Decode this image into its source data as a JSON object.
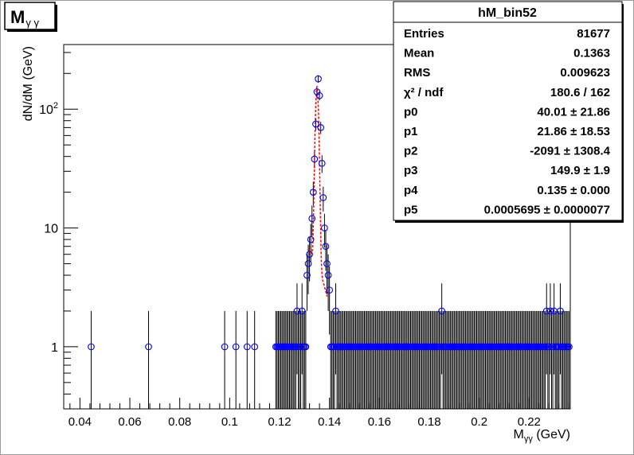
{
  "title_box": {
    "main": "M",
    "sub": "γ  γ"
  },
  "stats": {
    "title": "hM_bin52",
    "rows": [
      {
        "label": "Entries",
        "value": "81677"
      },
      {
        "label": "Mean",
        "value": "0.1363"
      },
      {
        "label": "RMS",
        "value": "0.009623"
      },
      {
        "label": "χ² / ndf",
        "value": "180.6 / 162"
      },
      {
        "label": "p0",
        "value": "40.01 ± 21.86"
      },
      {
        "label": "p1",
        "value": "21.86  ± 18.53"
      },
      {
        "label": "p2",
        "value": "-2091 ± 1308.4"
      },
      {
        "label": "p3",
        "value": "149.9  ± 1.9"
      },
      {
        "label": "p4",
        "value": "0.135 ± 0.000"
      },
      {
        "label": "p5",
        "value": "0.0005695 ± 0.0000077"
      }
    ]
  },
  "chart_data": {
    "type": "scatter",
    "subtype": "histogram-with-errors-and-fit",
    "title": "",
    "xlabel": {
      "main": "M",
      "sub": "γγ",
      "unit": " (GeV)"
    },
    "ylabel": "dN/dM (GeV)",
    "yscale": "log",
    "xlim": [
      0.0335,
      0.2365
    ],
    "ylim": [
      0.3,
      350
    ],
    "x_ticks": [
      {
        "value": 0.04,
        "label": "0.04"
      },
      {
        "value": 0.06,
        "label": "0.06"
      },
      {
        "value": 0.08,
        "label": "0.08"
      },
      {
        "value": 0.1,
        "label": "0.1"
      },
      {
        "value": 0.12,
        "label": "0.12"
      },
      {
        "value": 0.14,
        "label": "0.14"
      },
      {
        "value": 0.16,
        "label": "0.16"
      },
      {
        "value": 0.18,
        "label": "0.18"
      },
      {
        "value": 0.2,
        "label": "0.2"
      },
      {
        "value": 0.22,
        "label": "0.22"
      }
    ],
    "y_ticks": [
      {
        "value": 1,
        "label": "1"
      },
      {
        "value": 10,
        "label": "10"
      },
      {
        "value": 100,
        "label": "10²"
      }
    ],
    "bin_width": 0.0005,
    "sparse_points": [
      {
        "x": 0.0445,
        "y": 1
      },
      {
        "x": 0.0675,
        "y": 1
      },
      {
        "x": 0.098,
        "y": 1
      },
      {
        "x": 0.1025,
        "y": 1
      },
      {
        "x": 0.107,
        "y": 1
      },
      {
        "x": 0.11,
        "y": 1
      },
      {
        "x": 0.127,
        "y": 2
      },
      {
        "x": 0.129,
        "y": 2
      },
      {
        "x": 0.1425,
        "y": 2
      },
      {
        "x": 0.185,
        "y": 2
      },
      {
        "x": 0.227,
        "y": 2
      },
      {
        "x": 0.2285,
        "y": 2
      },
      {
        "x": 0.23,
        "y": 2
      },
      {
        "x": 0.2325,
        "y": 2
      }
    ],
    "band_range": [
      0.1185,
      0.236
    ],
    "band_value": 1,
    "peak_points": [
      {
        "x": 0.131,
        "y": 4
      },
      {
        "x": 0.1315,
        "y": 5
      },
      {
        "x": 0.132,
        "y": 6
      },
      {
        "x": 0.1325,
        "y": 8
      },
      {
        "x": 0.133,
        "y": 12
      },
      {
        "x": 0.1335,
        "y": 20
      },
      {
        "x": 0.134,
        "y": 38
      },
      {
        "x": 0.1345,
        "y": 75
      },
      {
        "x": 0.135,
        "y": 140
      },
      {
        "x": 0.1355,
        "y": 180
      },
      {
        "x": 0.136,
        "y": 130
      },
      {
        "x": 0.1365,
        "y": 70
      },
      {
        "x": 0.137,
        "y": 35
      },
      {
        "x": 0.1375,
        "y": 18
      },
      {
        "x": 0.138,
        "y": 10
      },
      {
        "x": 0.1385,
        "y": 7
      },
      {
        "x": 0.139,
        "y": 5
      },
      {
        "x": 0.1395,
        "y": 4
      },
      {
        "x": 0.14,
        "y": 3
      }
    ],
    "fit": {
      "function": "gaus + pol2",
      "p0": 40.01,
      "p1": 21.86,
      "p2": -2091,
      "p3": 149.9,
      "p4": 0.135,
      "p5": 0.0005695,
      "color": "#ff0000"
    },
    "colors": {
      "marker": "#0000ff",
      "error_bar": "#000000",
      "fit": "#ff0000"
    },
    "grid": false,
    "legend": "top-right stats box"
  }
}
